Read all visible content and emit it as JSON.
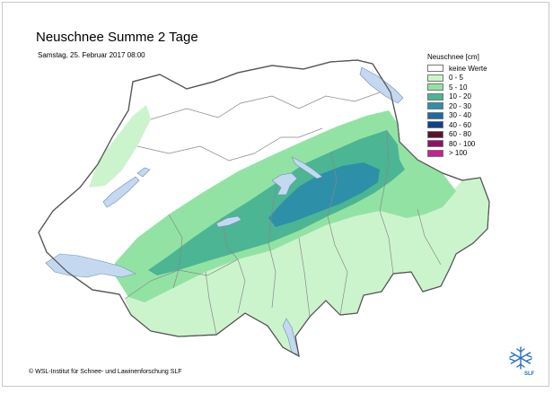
{
  "map": {
    "title": "Neuschnee Summe 2 Tage",
    "subtitle": "Samstag, 25. Februar 2017 08:00",
    "credit": "© WSL-Institut für Schnee- und Lawinenforschung SLF"
  },
  "legend": {
    "title": "Neuschnee [cm]",
    "items": [
      {
        "label": "keine Werte",
        "color": "#ffffff"
      },
      {
        "label": "0 - 5",
        "color": "#ccf4cc"
      },
      {
        "label": "5 - 10",
        "color": "#92e3a3"
      },
      {
        "label": "10 - 20",
        "color": "#4cb593"
      },
      {
        "label": "20 - 30",
        "color": "#2e8fa8"
      },
      {
        "label": "30 - 40",
        "color": "#1c6aa2"
      },
      {
        "label": "40 - 60",
        "color": "#12408a"
      },
      {
        "label": "60 - 80",
        "color": "#5c1030"
      },
      {
        "label": "80 - 100",
        "color": "#8e1268"
      },
      {
        "label": "> 100",
        "color": "#c81e96"
      }
    ]
  },
  "colors": {
    "lake": "#c4d9ef",
    "border": "#555555",
    "region_line": "#888888"
  },
  "logo": {
    "text": "SLF",
    "icon": "snowflake-logo-icon"
  }
}
